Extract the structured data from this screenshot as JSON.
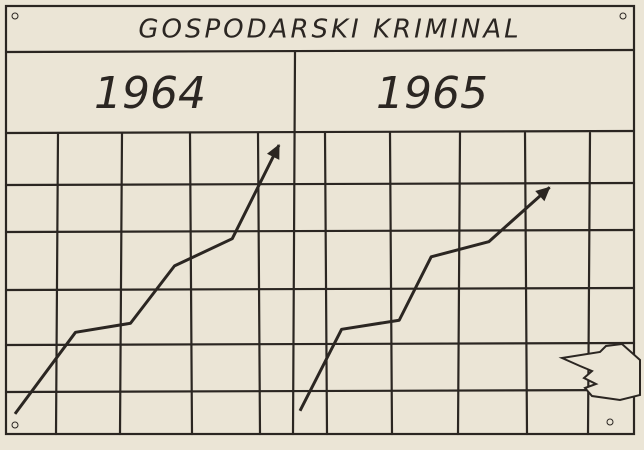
{
  "header": {
    "title": "GOSPODARSKI KRIMINAL"
  },
  "chart_data": [
    {
      "type": "line",
      "title": "1964",
      "x": [
        0,
        2.2,
        4.2,
        5.8,
        7.9,
        9.6
      ],
      "values": [
        0.7,
        3.4,
        3.7,
        5.6,
        6.5,
        9.6
      ],
      "xlim": [
        0,
        10
      ],
      "ylim": [
        0,
        10
      ],
      "color": "#2b2622"
    },
    {
      "type": "line",
      "title": "1965",
      "x": [
        0,
        1.3,
        3.1,
        4.1,
        5.9,
        7.8
      ],
      "values": [
        0.8,
        3.5,
        3.8,
        5.9,
        6.4,
        8.2
      ],
      "xlim": [
        0,
        10
      ],
      "ylim": [
        0,
        10
      ],
      "color": "#2b2622"
    }
  ]
}
